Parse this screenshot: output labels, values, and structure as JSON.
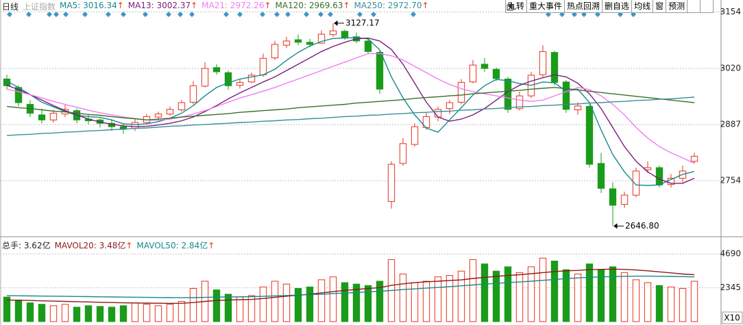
{
  "chart_data": [
    {
      "type": "candlestick",
      "title": "日线",
      "subtitle": "上证指数",
      "open": [
        2995,
        2975,
        2935,
        2910,
        2898,
        2912,
        2920,
        2900,
        2898,
        2890,
        2882,
        2878,
        2892,
        2905,
        2912,
        2922,
        2940,
        2978,
        3022,
        3010,
        2980,
        2988,
        3005,
        3045,
        3075,
        3088,
        3082,
        3080,
        3100,
        3108,
        3095,
        3085,
        3058,
        2705,
        2795,
        2840,
        2880,
        2905,
        2925,
        2940,
        2988,
        3030,
        3018,
        2995,
        2925,
        2955,
        3005,
        3058,
        2988,
        2922,
        2930,
        2795,
        2735,
        2698,
        2720,
        2780,
        2785,
        2745,
        2760,
        2800
      ],
      "high": [
        3005,
        2980,
        2945,
        2925,
        2922,
        2935,
        2925,
        2912,
        2902,
        2900,
        2890,
        2900,
        2912,
        2918,
        2930,
        2945,
        2990,
        3035,
        3030,
        3015,
        2995,
        3010,
        3055,
        3085,
        3095,
        3100,
        3090,
        3110,
        3127.17,
        3112,
        3105,
        3090,
        3062,
        2800,
        2855,
        2890,
        2915,
        2930,
        2945,
        2995,
        3040,
        3045,
        3022,
        3000,
        2965,
        3012,
        3075,
        3062,
        2992,
        2940,
        2935,
        2820,
        2750,
        2728,
        2785,
        2800,
        2790,
        2770,
        2790,
        2820
      ],
      "low": [
        2970,
        2930,
        2905,
        2890,
        2892,
        2905,
        2890,
        2888,
        2880,
        2872,
        2865,
        2872,
        2888,
        2898,
        2908,
        2918,
        2935,
        2975,
        3005,
        2970,
        2972,
        2985,
        3000,
        3040,
        3068,
        3075,
        3070,
        3078,
        3095,
        3088,
        3080,
        3055,
        2960,
        2688,
        2790,
        2835,
        2875,
        2895,
        2912,
        2935,
        2985,
        3012,
        2990,
        2915,
        2920,
        2950,
        3000,
        2980,
        2915,
        2910,
        2785,
        2725,
        2646.8,
        2690,
        2715,
        2772,
        2738,
        2738,
        2750,
        2795
      ],
      "close": [
        2979,
        2939,
        2914,
        2898,
        2914,
        2923,
        2898,
        2896,
        2890,
        2882,
        2877,
        2892,
        2906,
        2912,
        2923,
        2939,
        2979,
        3020,
        3012,
        2979,
        2987,
        3004,
        3044,
        3077,
        3085,
        3082,
        3077,
        3101,
        3109,
        3093,
        3085,
        3060,
        2971,
        2793,
        2842,
        2882,
        2906,
        2923,
        2939,
        2987,
        3028,
        3020,
        2996,
        2923,
        2955,
        3004,
        3060,
        2987,
        2923,
        2931,
        2793,
        2736,
        2696,
        2720,
        2777,
        2785,
        2744,
        2760,
        2777,
        2812
      ],
      "up_color": "#e8301c",
      "down_color": "#1a9b1a",
      "high_label": "3127.17",
      "low_label": "2646.80",
      "ylim": [
        2623,
        3174
      ],
      "yticks": [
        2754,
        2887,
        3020,
        3154
      ],
      "grid": true,
      "series": [
        {
          "name": "MA5: 3016.34",
          "arrow": "↑",
          "color": "#16898c",
          "values": [
            2990,
            2975,
            2958,
            2940,
            2929,
            2918,
            2909,
            2906,
            2904,
            2898,
            2889,
            2887,
            2889,
            2894,
            2902,
            2914,
            2932,
            2955,
            2975,
            2986,
            2995,
            3000,
            3005,
            3018,
            3039,
            3058,
            3073,
            3084,
            3091,
            3092,
            3093,
            3090,
            3064,
            3000,
            2950,
            2910,
            2879,
            2869,
            2898,
            2927,
            2957,
            2979,
            2994,
            2991,
            2984,
            2980,
            2988,
            2986,
            2966,
            2971,
            2939,
            2874,
            2816,
            2775,
            2744,
            2743,
            2744,
            2757,
            2769,
            2776
          ]
        },
        {
          "name": "MA13: 3002.37",
          "arrow": "↑",
          "color": "#7a1d7a",
          "values": [
            2980,
            2970,
            2958,
            2945,
            2932,
            2920,
            2910,
            2900,
            2893,
            2888,
            2884,
            2882,
            2883,
            2886,
            2890,
            2896,
            2905,
            2918,
            2932,
            2948,
            2962,
            2975,
            2988,
            3000,
            3015,
            3030,
            3045,
            3060,
            3072,
            3082,
            3090,
            3092,
            3085,
            3065,
            3030,
            2985,
            2940,
            2905,
            2895,
            2900,
            2910,
            2925,
            2945,
            2965,
            2980,
            2990,
            2998,
            3005,
            3000,
            2985,
            2960,
            2925,
            2880,
            2835,
            2800,
            2775,
            2758,
            2748,
            2748,
            2760
          ]
        },
        {
          "name": "MA21: 2972.26",
          "arrow": "↑",
          "color": "#f07cf0",
          "values": [
            2971,
            2965,
            2958,
            2950,
            2942,
            2935,
            2928,
            2921,
            2915,
            2910,
            2905,
            2901,
            2898,
            2897,
            2900,
            2905,
            2912,
            2920,
            2930,
            2940,
            2950,
            2958,
            2966,
            2975,
            2985,
            2995,
            3005,
            3015,
            3025,
            3035,
            3045,
            3055,
            3055,
            3050,
            3040,
            3025,
            3010,
            2995,
            2982,
            2972,
            2965,
            2960,
            2955,
            2950,
            2945,
            2942,
            2945,
            2955,
            2965,
            2975,
            2970,
            2955,
            2935,
            2910,
            2880,
            2855,
            2835,
            2820,
            2808,
            2795
          ]
        },
        {
          "name": "MA120: 2969.63",
          "arrow": "↑",
          "color": "#3a6f2a",
          "values": [
            2930,
            2927,
            2925,
            2922,
            2919,
            2917,
            2914,
            2911,
            2909,
            2906,
            2903,
            2901,
            2898,
            2900,
            2902,
            2905,
            2907,
            2909,
            2911,
            2913,
            2916,
            2918,
            2920,
            2922,
            2924,
            2927,
            2929,
            2931,
            2933,
            2935,
            2938,
            2940,
            2942,
            2944,
            2946,
            2949,
            2951,
            2953,
            2955,
            2957,
            2960,
            2962,
            2964,
            2966,
            2968,
            2971,
            2973,
            2975,
            2972,
            2969,
            2966,
            2963,
            2960,
            2957,
            2954,
            2951,
            2948,
            2945,
            2942,
            2939
          ]
        },
        {
          "name": "MA250: 2972.70",
          "arrow": "↑",
          "color": "#3a8d9a",
          "values": [
            2861,
            2863,
            2864,
            2866,
            2867,
            2869,
            2870,
            2872,
            2873,
            2875,
            2876,
            2878,
            2879,
            2881,
            2883,
            2884,
            2886,
            2887,
            2889,
            2890,
            2892,
            2893,
            2895,
            2896,
            2898,
            2899,
            2901,
            2902,
            2904,
            2906,
            2907,
            2909,
            2910,
            2912,
            2913,
            2915,
            2916,
            2918,
            2919,
            2921,
            2922,
            2924,
            2925,
            2927,
            2929,
            2930,
            2932,
            2933,
            2935,
            2936,
            2938,
            2939,
            2941,
            2942,
            2944,
            2945,
            2947,
            2948,
            2950,
            2952
          ]
        }
      ]
    },
    {
      "type": "bar",
      "title": "总手: 3.62亿",
      "multiplier": "X10",
      "values": [
        1700,
        1500,
        1300,
        1200,
        1100,
        1200,
        1000,
        1100,
        1050,
        1000,
        1100,
        1300,
        1200,
        1100,
        1200,
        1400,
        2300,
        2800,
        2200,
        1900,
        1700,
        1800,
        2400,
        2800,
        2600,
        2300,
        2400,
        2900,
        3100,
        2700,
        2600,
        2500,
        2800,
        4300,
        3300,
        2700,
        2800,
        3100,
        3200,
        3500,
        4300,
        4000,
        3500,
        3800,
        3400,
        3800,
        4400,
        4200,
        3600,
        3300,
        4000,
        3600,
        3800,
        3400,
        2900,
        2700,
        2500,
        2400,
        2300,
        2800
      ],
      "ylim": [
        0,
        5600
      ],
      "yticks": [
        2345,
        4690
      ],
      "grid": true,
      "series": [
        {
          "name": "MAVOL20: 3.48亿",
          "arrow": "↑",
          "color": "#8b1a1a",
          "values": [
            1500,
            1480,
            1460,
            1440,
            1420,
            1400,
            1380,
            1360,
            1340,
            1320,
            1300,
            1290,
            1280,
            1270,
            1260,
            1270,
            1320,
            1400,
            1460,
            1500,
            1520,
            1540,
            1600,
            1680,
            1760,
            1830,
            1900,
            1990,
            2080,
            2160,
            2230,
            2290,
            2360,
            2510,
            2620,
            2700,
            2760,
            2800,
            2850,
            2890,
            2990,
            3070,
            3130,
            3200,
            3250,
            3320,
            3400,
            3470,
            3520,
            3550,
            3600,
            3620,
            3640,
            3620,
            3580,
            3520,
            3450,
            3380,
            3300,
            3250
          ]
        },
        {
          "name": "MAVOL50: 2.84亿",
          "arrow": "↑",
          "color": "#16898c",
          "values": [
            1800,
            1790,
            1780,
            1770,
            1760,
            1750,
            1740,
            1730,
            1720,
            1710,
            1700,
            1690,
            1680,
            1670,
            1660,
            1655,
            1660,
            1680,
            1700,
            1710,
            1720,
            1730,
            1750,
            1780,
            1810,
            1840,
            1870,
            1900,
            1940,
            1980,
            2020,
            2060,
            2100,
            2160,
            2220,
            2270,
            2320,
            2370,
            2420,
            2480,
            2540,
            2600,
            2650,
            2700,
            2750,
            2800,
            2860,
            2920,
            2980,
            3030,
            3070,
            3100,
            3120,
            3140,
            3150,
            3150,
            3140,
            3130,
            3120,
            3100
          ]
        }
      ]
    }
  ],
  "toolbar": [
    "九转",
    "重大事件",
    "热点回溯",
    "删自选",
    "均线",
    "窗",
    "预测"
  ]
}
